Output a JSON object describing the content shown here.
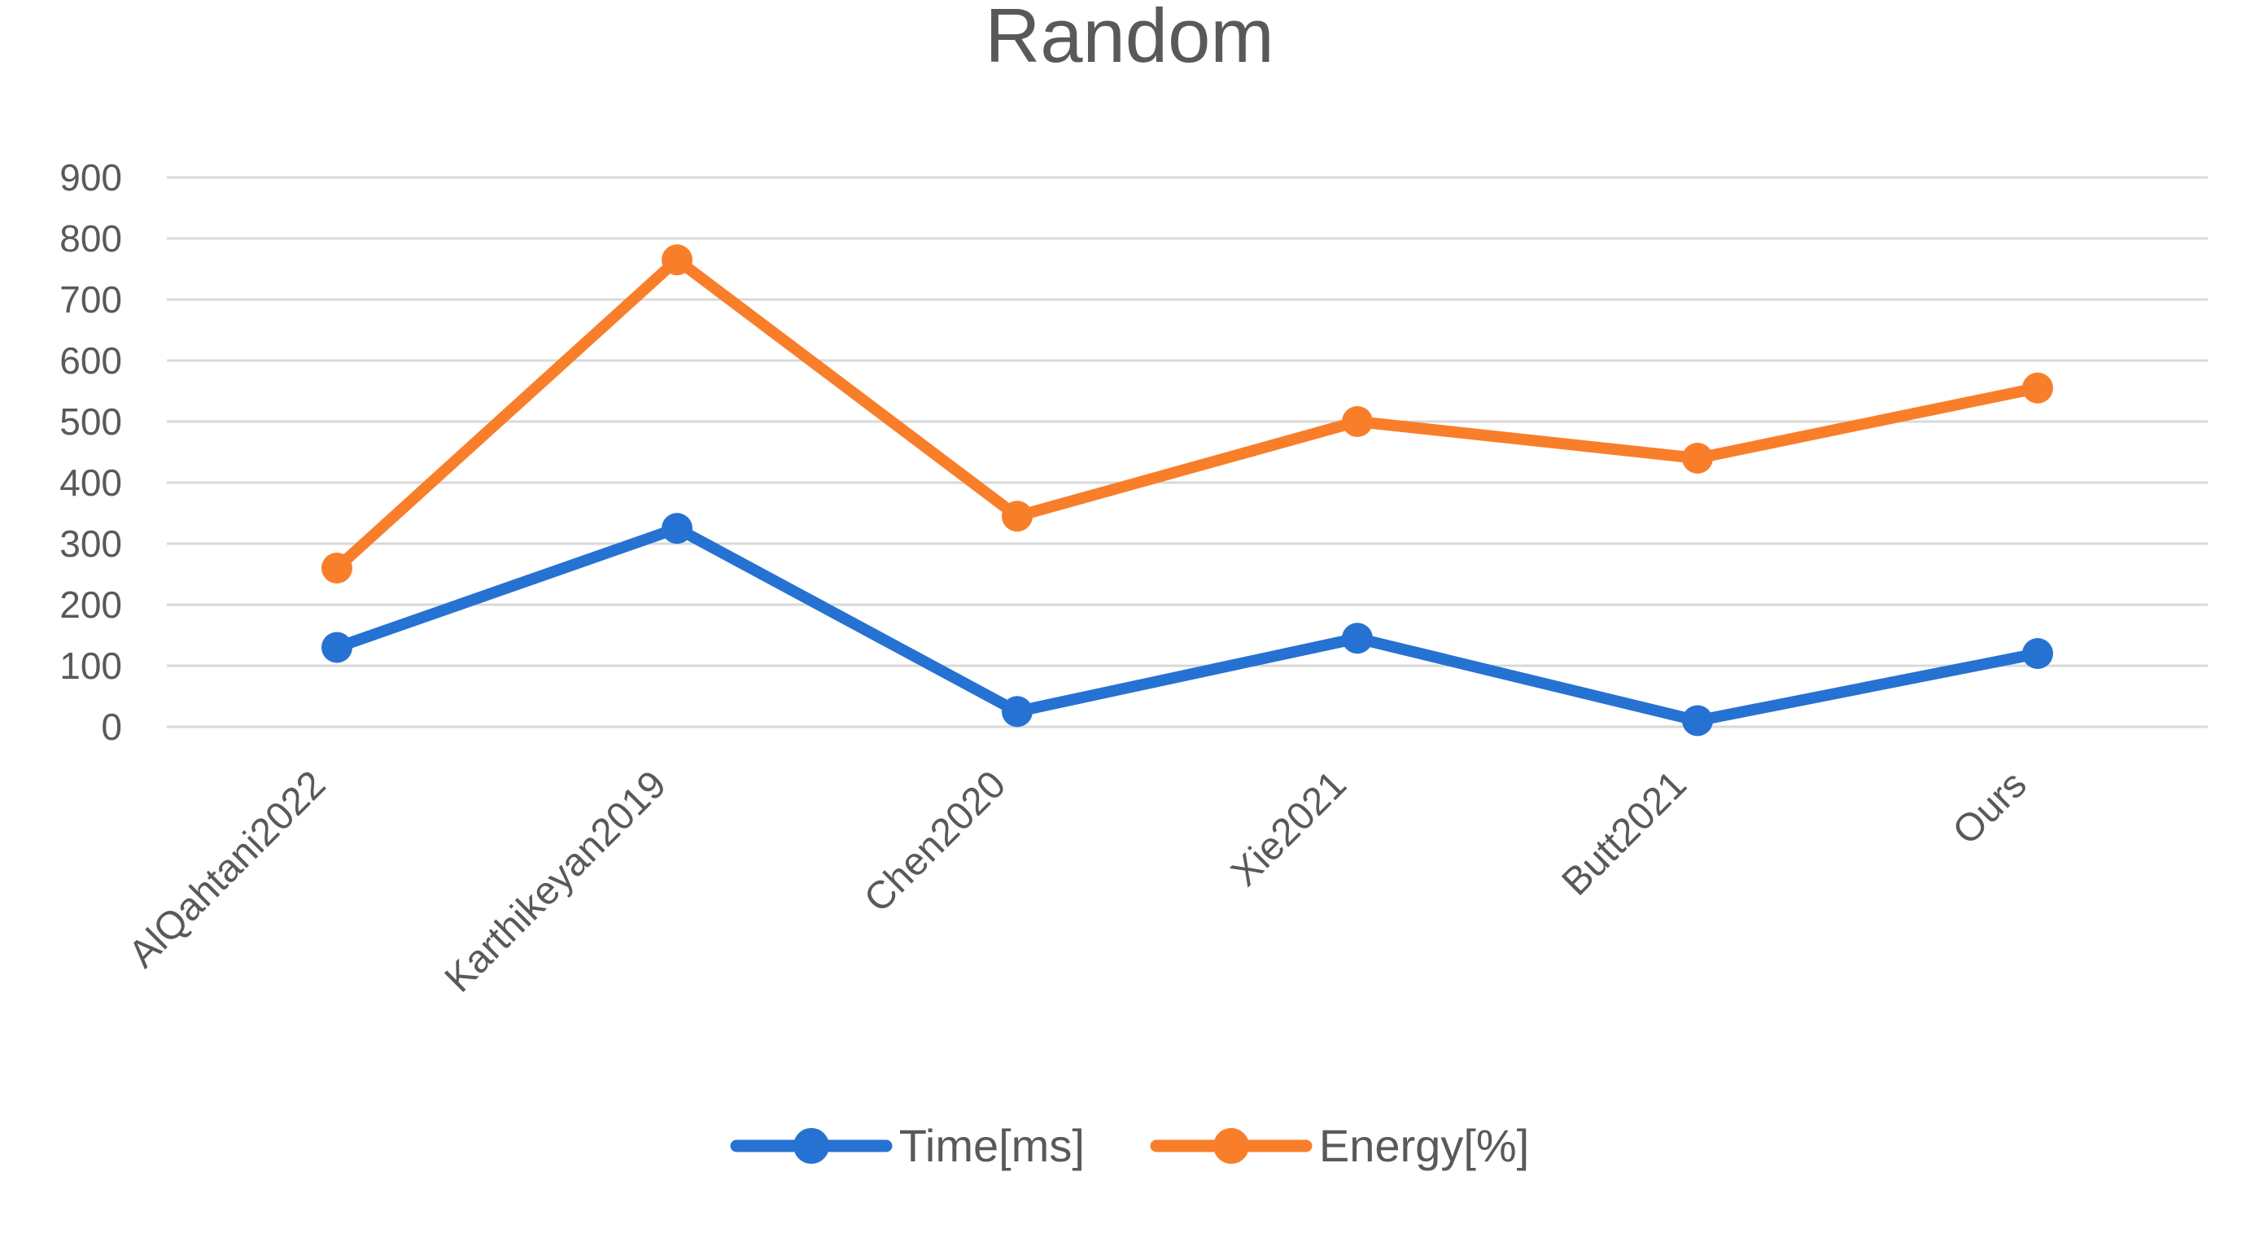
{
  "title": "Random",
  "colors": {
    "text": "#595959",
    "gridline": "#D9D9D9",
    "background": "#FFFFFF",
    "series_blue": "#2572D3",
    "series_orange": "#F97E2A"
  },
  "chart_data": {
    "type": "line",
    "title": "Random",
    "categories": [
      "AlQahtani2022",
      "Karthikeyan2019",
      "Chen2020",
      "Xie2021",
      "Butt2021",
      "Ours"
    ],
    "series": [
      {
        "name": "Time[ms]",
        "color": "#2572D3",
        "values": [
          130,
          325,
          25,
          145,
          10,
          120
        ]
      },
      {
        "name": "Energy[%]",
        "color": "#F97E2A",
        "values": [
          260,
          765,
          345,
          500,
          440,
          555
        ]
      }
    ],
    "xlabel": "",
    "ylabel": "",
    "ylim": [
      0,
      900
    ],
    "ytick_step": 100,
    "yticks": [
      900,
      800,
      700,
      600,
      500,
      400,
      300,
      200,
      100,
      0
    ],
    "grid": true,
    "marker": "circle",
    "legend_position": "bottom",
    "x_label_rotation_deg": -45
  }
}
